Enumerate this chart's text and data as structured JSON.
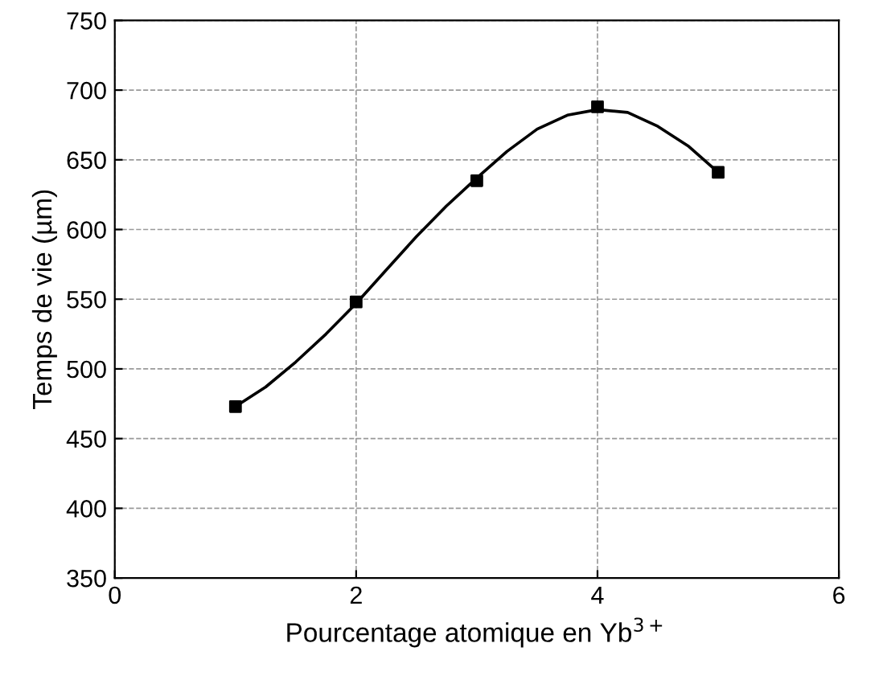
{
  "chart_data": {
    "type": "scatter",
    "xlabel": "Pourcentage atomique en Yb$^{3+}$",
    "ylabel": "Temps de vie (µm)",
    "x": [
      1,
      2,
      3,
      4,
      5
    ],
    "series": [
      {
        "color": "#000000",
        "marker": "square",
        "values": [
          473,
          548,
          635,
          688,
          641
        ]
      },
      {
        "type": "line",
        "color": "#000000",
        "marker": "none",
        "line_style": "solid",
        "x": [
          1,
          1.25,
          1.5,
          1.75,
          2,
          2.25,
          2.5,
          2.75,
          3,
          3.25,
          3.5,
          3.75,
          4,
          4.25,
          4.5,
          4.75,
          5
        ],
        "values": [
          473,
          487,
          505,
          525,
          547,
          571,
          595,
          617,
          637,
          656,
          672,
          682,
          686,
          684,
          674,
          660,
          641
        ]
      }
    ],
    "xlim": [
      0,
      6
    ],
    "ylim": [
      350,
      750
    ],
    "xticks": [
      0,
      2,
      4,
      6
    ],
    "yticks": [
      350,
      400,
      450,
      500,
      550,
      600,
      650,
      700,
      750
    ],
    "grid": true
  }
}
